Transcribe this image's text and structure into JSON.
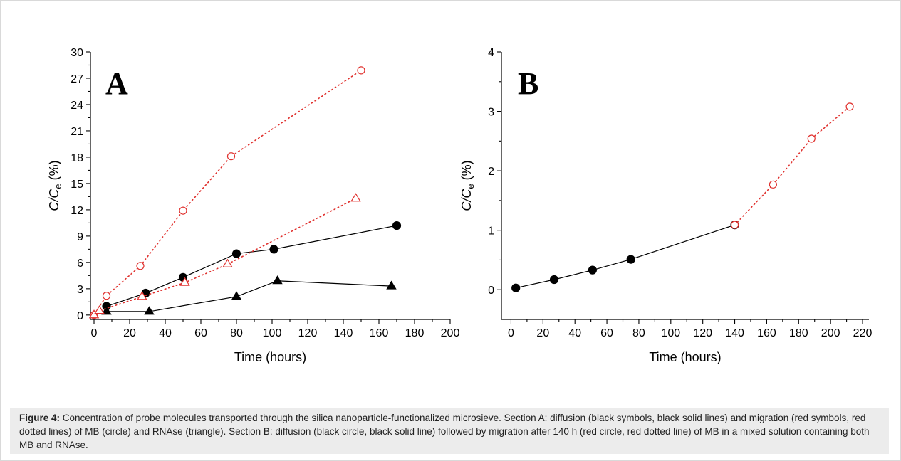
{
  "caption": {
    "label": "Figure 4:",
    "text": " Concentration of probe molecules transported through the silica nanoparticle-functionalized microsieve. Section A: diffusion (black symbols, black solid lines) and migration (red symbols, red dotted lines) of MB (circle) and RNAse (triangle). Section B: diffusion (black circle, black solid line) followed by migration after 140 h (red circle, red dotted line) of MB in a mixed solution containing both MB and RNAse."
  },
  "colors": {
    "black": "#000000",
    "red": "#e0312e"
  },
  "chart_data": [
    {
      "type": "line",
      "panel_label": "A",
      "xlabel": "Time (hours)",
      "ylabel_main": "C/C",
      "ylabel_sub": "e",
      "ylabel_unit": " (%)",
      "xlim": [
        -2,
        200
      ],
      "ylim": [
        -0.5,
        30
      ],
      "xticks": [
        0,
        20,
        40,
        60,
        80,
        100,
        120,
        140,
        160,
        180,
        200
      ],
      "yticks": [
        0,
        3,
        6,
        9,
        12,
        15,
        18,
        21,
        24,
        27,
        30
      ],
      "grid": false,
      "series": [
        {
          "marker": "circle-filled",
          "line": "solid",
          "color": "#000000",
          "x": [
            7,
            29,
            50,
            80,
            101,
            170
          ],
          "y": [
            1.0,
            2.5,
            4.3,
            7.0,
            7.5,
            10.2
          ]
        },
        {
          "marker": "triangle-filled",
          "line": "solid",
          "color": "#000000",
          "x": [
            7,
            31,
            80,
            103,
            167
          ],
          "y": [
            0.4,
            0.4,
            2.1,
            3.9,
            3.3
          ]
        },
        {
          "marker": "circle-open",
          "line": "dotted",
          "color": "#e0312e",
          "x": [
            0,
            7,
            26,
            50,
            77,
            150
          ],
          "y": [
            0,
            2.2,
            5.6,
            11.9,
            18.1,
            27.9
          ]
        },
        {
          "marker": "triangle-open",
          "line": "dotted",
          "color": "#e0312e",
          "x": [
            0,
            3,
            27,
            51,
            75,
            147
          ],
          "y": [
            0,
            0.5,
            2.1,
            3.7,
            5.8,
            13.3
          ]
        }
      ]
    },
    {
      "type": "line",
      "panel_label": "B",
      "xlabel": "Time (hours)",
      "ylabel_main": "C/C",
      "ylabel_sub": "e",
      "ylabel_unit": " (%)",
      "xlim": [
        -6,
        224
      ],
      "ylim": [
        -0.5,
        4
      ],
      "xticks": [
        0,
        20,
        40,
        60,
        80,
        100,
        120,
        140,
        160,
        180,
        200,
        220
      ],
      "yticks": [
        0,
        1,
        2,
        3,
        4
      ],
      "grid": false,
      "series": [
        {
          "marker": "circle-filled",
          "line": "solid",
          "color": "#000000",
          "x": [
            3,
            27,
            51,
            75,
            140
          ],
          "y": [
            0.03,
            0.17,
            0.33,
            0.51,
            1.09
          ]
        },
        {
          "marker": "circle-open",
          "line": "dotted",
          "color": "#e0312e",
          "x": [
            140,
            164,
            188,
            212
          ],
          "y": [
            1.09,
            1.77,
            2.54,
            3.08
          ]
        }
      ]
    }
  ]
}
